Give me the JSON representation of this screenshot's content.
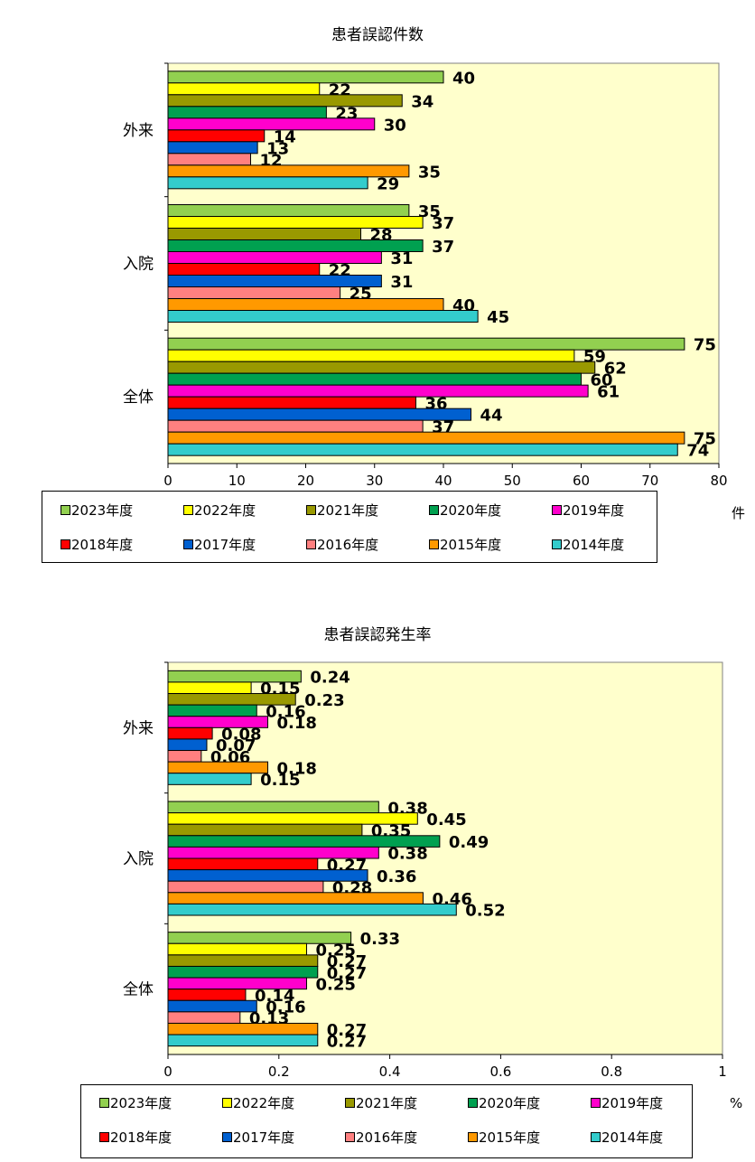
{
  "colors": {
    "2023年度": "#92d050",
    "2022年度": "#ffff00",
    "2021年度": "#999900",
    "2020年度": "#00a050",
    "2019年度": "#ff00cc",
    "2018年度": "#ff0000",
    "2017年度": "#0060d0",
    "2016年度": "#ff8080",
    "2015年度": "#ff9900",
    "2014年度": "#33cccc",
    "plot_bg": "#ffffcc"
  },
  "chart_data": [
    {
      "type": "bar",
      "orientation": "horizontal",
      "title": "患者誤認件数",
      "unit": "件",
      "categories": [
        "外来",
        "入院",
        "全体"
      ],
      "xlim": [
        0,
        80
      ],
      "ticks": [
        "0",
        "10",
        "20",
        "30",
        "40",
        "50",
        "60",
        "70",
        "80"
      ],
      "grid": false,
      "legend_position": "bottom",
      "series": [
        {
          "name": "2023年度",
          "values": [
            40,
            35,
            75
          ],
          "labels": [
            "40",
            "35",
            "75"
          ]
        },
        {
          "name": "2022年度",
          "values": [
            22,
            37,
            59
          ],
          "labels": [
            "22",
            "37",
            "59"
          ]
        },
        {
          "name": "2021年度",
          "values": [
            34,
            28,
            62
          ],
          "labels": [
            "34",
            "28",
            "62"
          ]
        },
        {
          "name": "2020年度",
          "values": [
            23,
            37,
            60
          ],
          "labels": [
            "23",
            "37",
            "60"
          ]
        },
        {
          "name": "2019年度",
          "values": [
            30,
            31,
            61
          ],
          "labels": [
            "30",
            "31",
            "61"
          ]
        },
        {
          "name": "2018年度",
          "values": [
            14,
            22,
            36
          ],
          "labels": [
            "14",
            "22",
            "36"
          ]
        },
        {
          "name": "2017年度",
          "values": [
            13,
            31,
            44
          ],
          "labels": [
            "13",
            "31",
            "44"
          ]
        },
        {
          "name": "2016年度",
          "values": [
            12,
            25,
            37
          ],
          "labels": [
            "12",
            "25",
            "37"
          ]
        },
        {
          "name": "2015年度",
          "values": [
            35,
            40,
            75
          ],
          "labels": [
            "35",
            "40",
            "75"
          ]
        },
        {
          "name": "2014年度",
          "values": [
            29,
            45,
            74
          ],
          "labels": [
            "29",
            "45",
            "74"
          ]
        }
      ]
    },
    {
      "type": "bar",
      "orientation": "horizontal",
      "title": "患者誤認発生率",
      "unit": "%",
      "categories": [
        "外来",
        "入院",
        "全体"
      ],
      "xlim": [
        0,
        1
      ],
      "ticks": [
        "0",
        "0.2",
        "0.4",
        "0.6",
        "0.8",
        "1"
      ],
      "grid": false,
      "legend_position": "bottom",
      "series": [
        {
          "name": "2023年度",
          "values": [
            0.24,
            0.38,
            0.33
          ],
          "labels": [
            "0.24",
            "0.38",
            "0.33"
          ]
        },
        {
          "name": "2022年度",
          "values": [
            0.15,
            0.45,
            0.25
          ],
          "labels": [
            "0.15",
            "0.45",
            "0.25"
          ]
        },
        {
          "name": "2021年度",
          "values": [
            0.23,
            0.35,
            0.27
          ],
          "labels": [
            "0.23",
            "0.35",
            "0.27"
          ]
        },
        {
          "name": "2020年度",
          "values": [
            0.16,
            0.49,
            0.27
          ],
          "labels": [
            "0.16",
            "0.49",
            "0.27"
          ]
        },
        {
          "name": "2019年度",
          "values": [
            0.18,
            0.38,
            0.25
          ],
          "labels": [
            "0.18",
            "0.38",
            "0.25"
          ]
        },
        {
          "name": "2018年度",
          "values": [
            0.08,
            0.27,
            0.14
          ],
          "labels": [
            "0.08",
            "0.27",
            "0.14"
          ]
        },
        {
          "name": "2017年度",
          "values": [
            0.07,
            0.36,
            0.16
          ],
          "labels": [
            "0.07",
            "0.36",
            "0.16"
          ]
        },
        {
          "name": "2016年度",
          "values": [
            0.06,
            0.28,
            0.13
          ],
          "labels": [
            "0.06",
            "0.28",
            "0.13"
          ]
        },
        {
          "name": "2015年度",
          "values": [
            0.18,
            0.46,
            0.27
          ],
          "labels": [
            "0.18",
            "0.46",
            "0.27"
          ]
        },
        {
          "name": "2014年度",
          "values": [
            0.15,
            0.52,
            0.27
          ],
          "labels": [
            "0.15",
            "0.52",
            "0.27"
          ]
        }
      ]
    }
  ]
}
